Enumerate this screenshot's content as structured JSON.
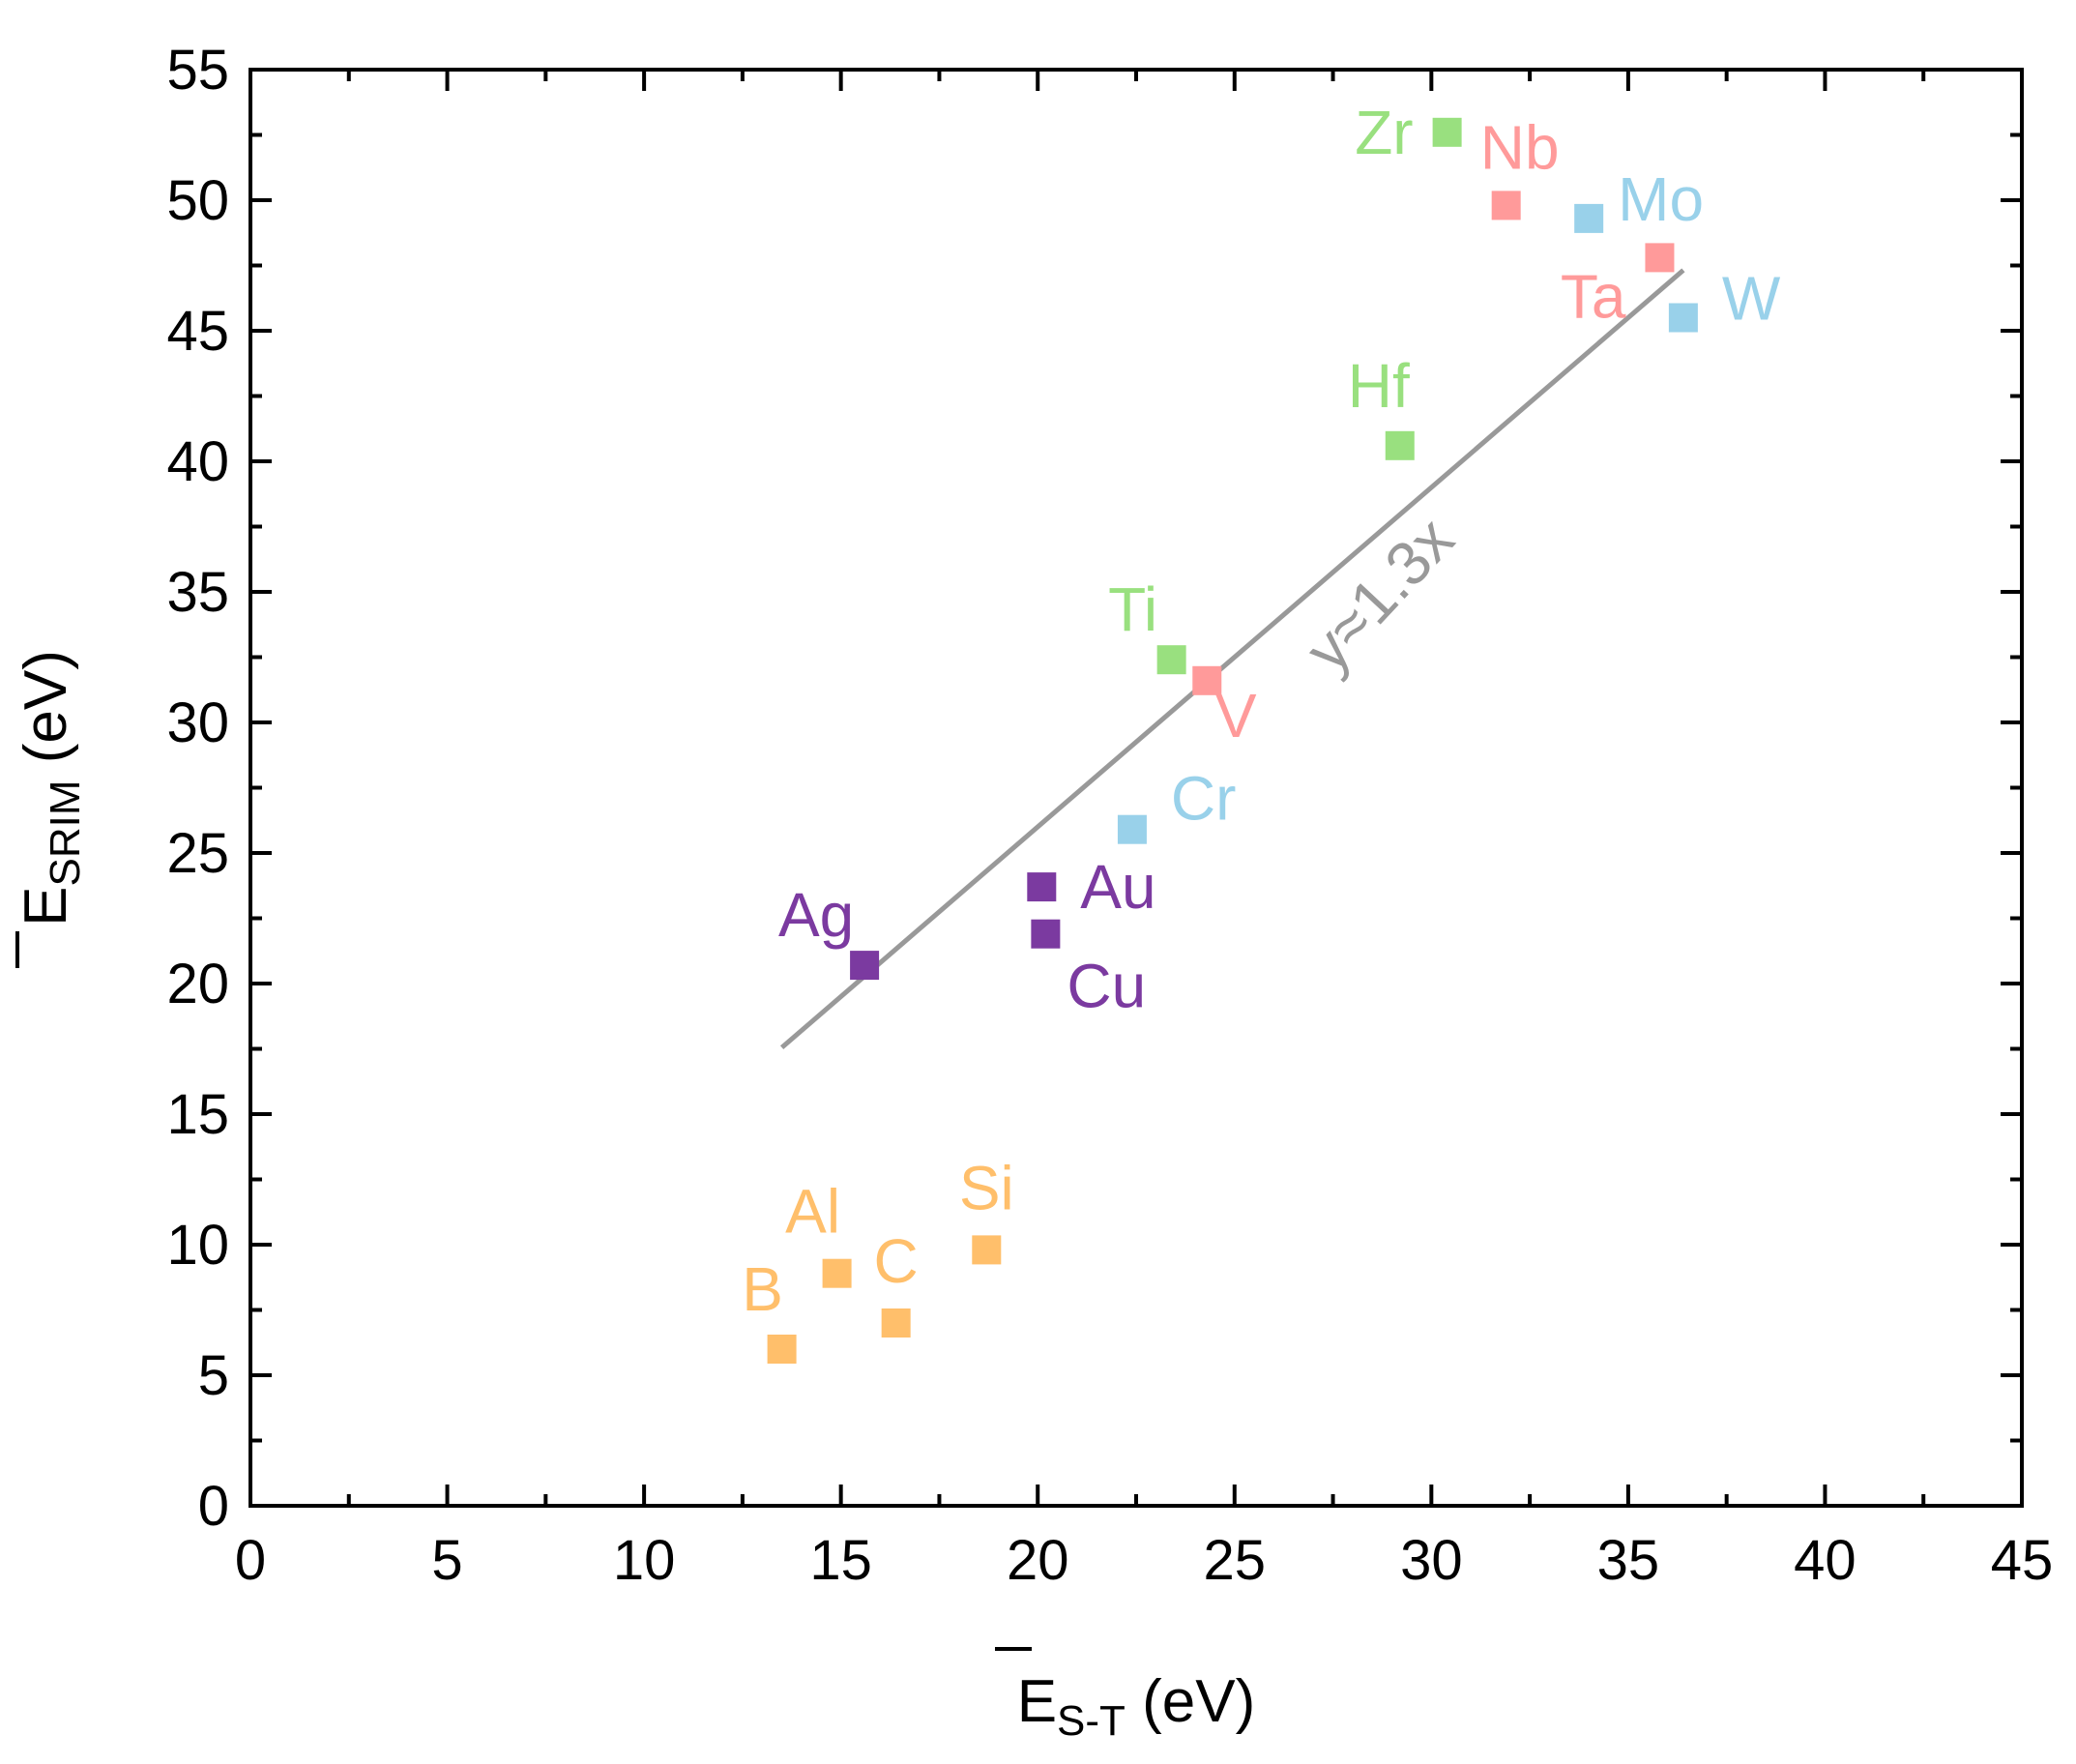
{
  "chart_data": {
    "type": "scatter",
    "xlabel": {
      "main": "E",
      "sub": "S-T",
      "unit": " (eV)"
    },
    "ylabel": {
      "main": "E",
      "sub": "SRIM",
      "unit": " (eV)"
    },
    "xlim": [
      0,
      45
    ],
    "ylim": [
      0,
      55
    ],
    "xticks": [
      "0",
      "5",
      "10",
      "15",
      "20",
      "25",
      "30",
      "35",
      "40",
      "45"
    ],
    "yticks": [
      "0",
      "5",
      "10",
      "15",
      "20",
      "25",
      "30",
      "35",
      "40",
      "45",
      "50",
      "55"
    ],
    "grid": false,
    "groups": [
      {
        "color": "#FFBF6B",
        "points": [
          {
            "label": "B",
            "x": 13.5,
            "y": 6.0
          },
          {
            "label": "Al",
            "x": 14.9,
            "y": 8.9
          },
          {
            "label": "C",
            "x": 16.4,
            "y": 7.0
          },
          {
            "label": "Si",
            "x": 18.7,
            "y": 9.8
          }
        ]
      },
      {
        "color": "#7B3AA0",
        "points": [
          {
            "label": "Ag",
            "x": 15.6,
            "y": 20.7
          },
          {
            "label": "Au",
            "x": 20.1,
            "y": 23.7
          },
          {
            "label": "Cu",
            "x": 20.2,
            "y": 21.9
          }
        ]
      },
      {
        "color": "#99E07F",
        "points": [
          {
            "label": "Ti",
            "x": 23.4,
            "y": 32.4
          },
          {
            "label": "Hf",
            "x": 29.2,
            "y": 40.6
          },
          {
            "label": "Zr",
            "x": 30.4,
            "y": 52.6
          }
        ]
      },
      {
        "color": "#FF9A9A",
        "points": [
          {
            "label": "V",
            "x": 24.3,
            "y": 31.6
          },
          {
            "label": "Nb",
            "x": 31.9,
            "y": 49.8
          },
          {
            "label": "Ta",
            "x": 35.8,
            "y": 47.8
          }
        ]
      },
      {
        "color": "#99D1EA",
        "points": [
          {
            "label": "Cr",
            "x": 22.4,
            "y": 25.9
          },
          {
            "label": "Mo",
            "x": 34.0,
            "y": 49.3
          },
          {
            "label": "W",
            "x": 36.4,
            "y": 45.5
          }
        ]
      }
    ],
    "fit_line": {
      "label": "y≈1.3x",
      "color": "#999999",
      "slope": 1.3,
      "x_range": [
        13.5,
        36.4
      ]
    }
  }
}
